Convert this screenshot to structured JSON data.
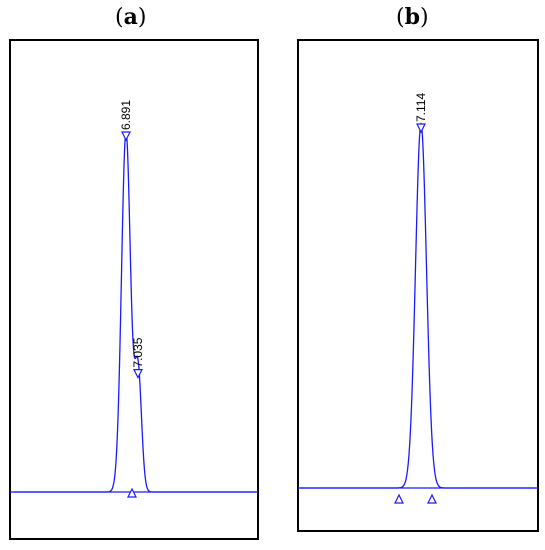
{
  "chart_data": [
    {
      "type": "line",
      "panel": "(a)",
      "panel_letter": "a",
      "title": "",
      "xlabel": "",
      "ylabel": "",
      "grid": false,
      "peaks": [
        {
          "label": "6.891",
          "retention_time": 6.891,
          "relative_height": 1.0
        },
        {
          "label": "7.035",
          "retention_time": 7.035,
          "relative_height": 0.34
        }
      ],
      "color": "#1a1aff"
    },
    {
      "type": "line",
      "panel": "(b)",
      "panel_letter": "b",
      "title": "",
      "xlabel": "",
      "ylabel": "",
      "grid": false,
      "peaks": [
        {
          "label": "7.114",
          "retention_time": 7.114,
          "relative_height": 1.0
        }
      ],
      "color": "#1a1aff"
    }
  ]
}
